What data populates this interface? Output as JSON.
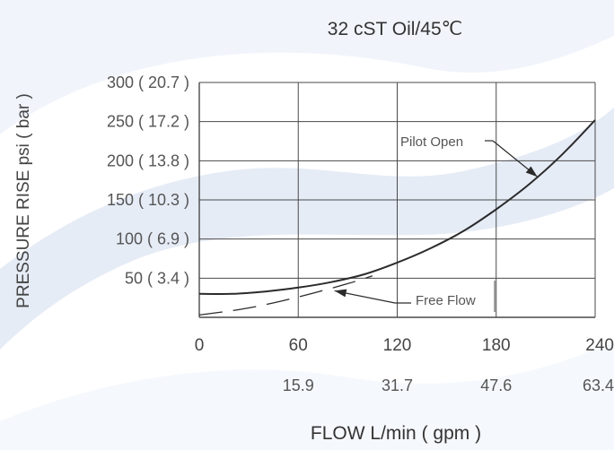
{
  "chart_data": {
    "type": "line",
    "title": "32 cST Oil/45℃",
    "xlabel": "FLOW L/min ( gpm )",
    "ylabel": "PRESSURE RISE psi ( bar )",
    "xlim": [
      0,
      240
    ],
    "ylim": [
      0,
      300
    ],
    "grid": true,
    "x_ticks": [
      {
        "value": 0,
        "label": "0",
        "sub": ""
      },
      {
        "value": 60,
        "label": "60",
        "sub": "15.9"
      },
      {
        "value": 120,
        "label": "120",
        "sub": "31.7"
      },
      {
        "value": 180,
        "label": "180",
        "sub": "47.6"
      },
      {
        "value": 240,
        "label": "240",
        "sub": "63.4"
      }
    ],
    "y_ticks": [
      {
        "value": 50,
        "label": "50 ( 3.4 )"
      },
      {
        "value": 100,
        "label": "100 ( 6.9 )"
      },
      {
        "value": 150,
        "label": "150 ( 10.3 )"
      },
      {
        "value": 200,
        "label": "200 ( 13.8 )"
      },
      {
        "value": 250,
        "label": "250 ( 17.2 )"
      },
      {
        "value": 300,
        "label": "300 ( 20.7 )"
      }
    ],
    "series": [
      {
        "name": "Pilot Open",
        "style": "solid",
        "x": [
          0,
          20,
          40,
          60,
          80,
          100,
          120,
          140,
          160,
          180,
          200,
          220,
          240
        ],
        "y": [
          30,
          30,
          33,
          38,
          45,
          55,
          70,
          88,
          110,
          138,
          170,
          208,
          252
        ]
      },
      {
        "name": "Free Flow",
        "style": "dashed",
        "x": [
          0,
          30,
          60,
          90,
          105
        ],
        "y": [
          3,
          12,
          26,
          43,
          53
        ]
      }
    ],
    "annotations": [
      {
        "text": "Pilot Open",
        "series": 0,
        "arrow_to_x": 205
      },
      {
        "text": "Free Flow",
        "series": 1,
        "arrow_to_x": 82
      }
    ],
    "colors": {
      "line": "#2b2b2b",
      "grid": "#4a4a4a",
      "text": "#444444",
      "background_wave": "#dde6f3"
    }
  }
}
